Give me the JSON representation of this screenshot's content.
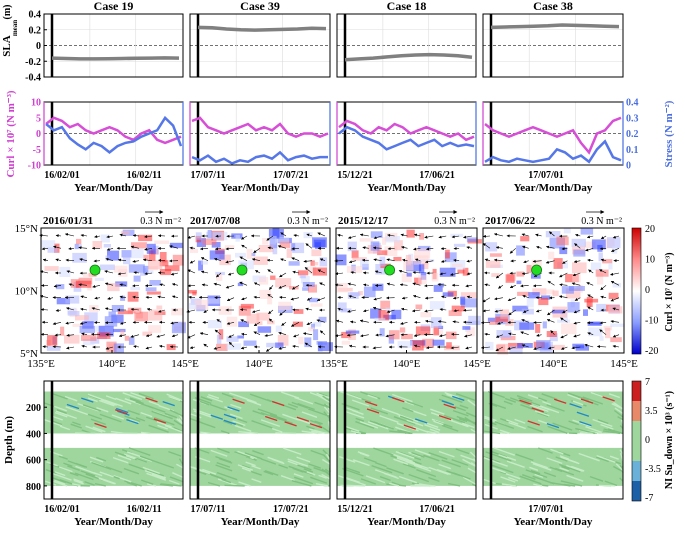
{
  "chart_data": [
    {
      "type": "line",
      "row": "sla",
      "ylabel_main": "SLA",
      "ylabel_sub": "mean",
      "ylabel_unit": "(m)",
      "ylim": [
        -0.4,
        0.4
      ],
      "yticks": [
        "0.4",
        "0.2",
        "0",
        "-0.2",
        "-0.4"
      ],
      "panels": [
        {
          "title": "Case 19",
          "values": [
            -0.16,
            -0.165,
            -0.17,
            -0.17,
            -0.168,
            -0.165,
            -0.162,
            -0.16,
            -0.158,
            -0.16
          ]
        },
        {
          "title": "Case 39",
          "values": [
            0.23,
            0.225,
            0.21,
            0.2,
            0.195,
            0.2,
            0.205,
            0.21,
            0.22,
            0.215
          ]
        },
        {
          "title": "Case 18",
          "values": [
            -0.18,
            -0.17,
            -0.16,
            -0.145,
            -0.13,
            -0.12,
            -0.115,
            -0.12,
            -0.13,
            -0.15
          ]
        },
        {
          "title": "Case 38",
          "values": [
            0.23,
            0.235,
            0.24,
            0.245,
            0.25,
            0.26,
            0.255,
            0.25,
            0.245,
            0.24
          ]
        }
      ]
    },
    {
      "type": "line",
      "row": "curl-stress",
      "ylabel_left": "Curl × 10⁷ (N m⁻³)",
      "ylabel_right": "Stress (N m⁻²)",
      "ylim_left": [
        -10,
        10
      ],
      "ylim_right": [
        0,
        0.4
      ],
      "yticks_left": [
        "10",
        "5",
        "0",
        "-5",
        "-10"
      ],
      "yticks_right": [
        "0.4",
        "0.3",
        "0.2",
        "0.1",
        "0"
      ],
      "xlabel": "Year/Month/Day",
      "panels": [
        {
          "xticks": [
            "16/02/01",
            "16/02/11"
          ],
          "curl": [
            3,
            5,
            4,
            2,
            3,
            1,
            0,
            1,
            2,
            1,
            -1,
            -2,
            0,
            1,
            -2,
            -3,
            -2,
            -1
          ],
          "stress": [
            0.26,
            0.22,
            0.24,
            0.17,
            0.13,
            0.1,
            0.14,
            0.12,
            0.08,
            0.12,
            0.14,
            0.15,
            0.18,
            0.2,
            0.22,
            0.3,
            0.25,
            0.12
          ]
        },
        {
          "xticks": [
            "17/07/11",
            "17/07/21"
          ],
          "curl": [
            4,
            5,
            2,
            1,
            0,
            1,
            2,
            3,
            1,
            2,
            1,
            3,
            0,
            -1,
            0,
            0,
            -1,
            0
          ],
          "stress": [
            0.05,
            0.03,
            0.06,
            0.02,
            0.04,
            0.01,
            0.03,
            0.02,
            0.05,
            0.06,
            0.04,
            0.08,
            0.03,
            0.05,
            0.06,
            0.04,
            0.05,
            0.05
          ]
        },
        {
          "xticks": [
            "15/12/21",
            "17/06/21"
          ],
          "curl": [
            2,
            4,
            3,
            1,
            0,
            2,
            1,
            3,
            2,
            0,
            1,
            2,
            1,
            0,
            -1,
            0,
            -2,
            -1
          ],
          "stress": [
            0.2,
            0.24,
            0.22,
            0.18,
            0.16,
            0.14,
            0.1,
            0.12,
            0.14,
            0.16,
            0.12,
            0.14,
            0.16,
            0.12,
            0.14,
            0.12,
            0.13,
            0.12
          ]
        },
        {
          "xticks": [
            "17/07/01"
          ],
          "curl": [
            3,
            1,
            0,
            -1,
            0,
            1,
            2,
            1,
            0,
            -1,
            0,
            1,
            -3,
            -6,
            0,
            1,
            4,
            5
          ],
          "stress": [
            0.02,
            0.05,
            0.03,
            0.02,
            0.04,
            0.03,
            0.02,
            0.03,
            0.04,
            0.1,
            0.08,
            0.04,
            0.06,
            0.02,
            0.1,
            0.15,
            0.05,
            0.03
          ]
        }
      ]
    },
    {
      "type": "heatmap",
      "row": "wind-map",
      "colorbar_label": "Curl × 10⁷ (N m⁻³)",
      "colorbar_ticks": [
        "20",
        "10",
        "0",
        "-10",
        "-20"
      ],
      "yticks": [
        "15°N",
        "10°N",
        "5°N"
      ],
      "xticks": [
        "135°E",
        "140°E",
        "145°E"
      ],
      "reference_vector": "0.3 N m⁻²",
      "panels": [
        {
          "date": "2016/01/31"
        },
        {
          "date": "2017/07/08"
        },
        {
          "date": "2015/12/17"
        },
        {
          "date": "2017/06/22"
        }
      ]
    },
    {
      "type": "heatmap",
      "row": "depth-time",
      "ylabel": "Depth (m)",
      "yticks": [
        "200",
        "400",
        "600",
        "800"
      ],
      "ylim": [
        0,
        900
      ],
      "xlabel": "Year/Month/Day",
      "colorbar_label": "NI Su_down × 10³ (s⁻¹)",
      "colorbar_ticks": [
        "7",
        "3.5",
        "0",
        "-3.5",
        "-7"
      ],
      "panels": [
        {
          "xticks": [
            "16/02/01",
            "16/02/11"
          ]
        },
        {
          "xticks": [
            "17/07/11",
            "17/07/21"
          ]
        },
        {
          "xticks": [
            "15/12/21",
            "17/06/21"
          ]
        },
        {
          "xticks": [
            "17/07/01"
          ]
        }
      ]
    }
  ]
}
